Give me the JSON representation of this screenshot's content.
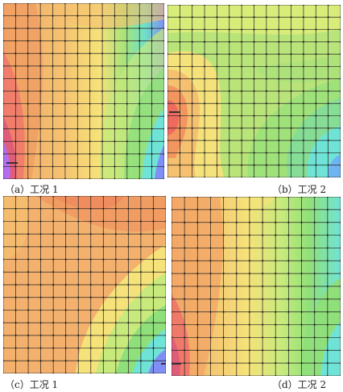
{
  "panels": [
    {
      "id": "a",
      "caption": "（a）工况 1",
      "grid": {
        "cols": 13,
        "rows": 14
      }
    },
    {
      "id": "b",
      "caption": "（b）工况 2",
      "grid": {
        "cols": 14,
        "rows": 14
      }
    },
    {
      "id": "c",
      "caption": "（c）工况 1",
      "grid": {
        "cols": 13,
        "rows": 14
      }
    },
    {
      "id": "d",
      "caption": "（d）工况 2",
      "grid": {
        "cols": 13,
        "rows": 14
      }
    }
  ],
  "colors": {
    "red": "#f06a6a",
    "orange": "#f5a060",
    "peach": "#f3b16d",
    "yellow": "#f6e27a",
    "lightgreen": "#c8ea7c",
    "green": "#8fe07a",
    "cyan": "#6fe4d6",
    "blue": "#7f8ff5",
    "violet": "#b36df0",
    "grid": "#222222"
  }
}
